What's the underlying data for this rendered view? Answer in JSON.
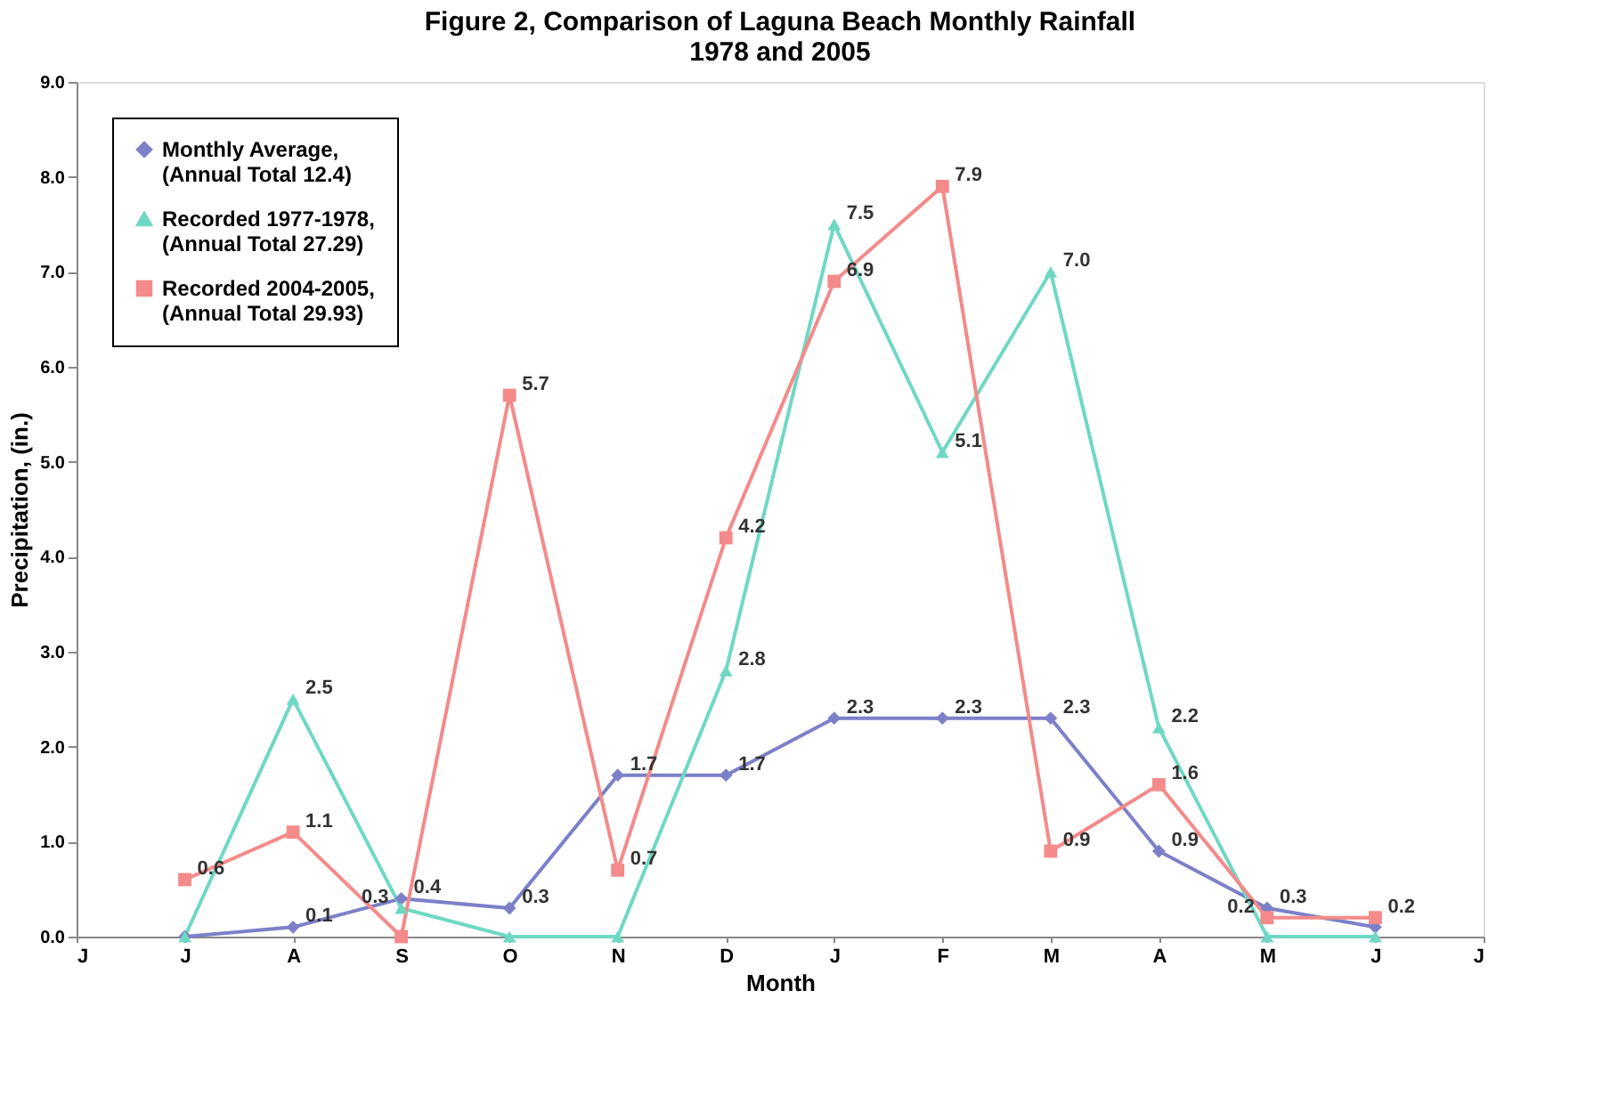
{
  "chart_data": {
    "type": "line",
    "title": "Figure 2, Comparison of Laguna Beach Monthly Rainfall\n1978 and 2005",
    "xlabel": "Month",
    "ylabel": "Precipitation, (in.)",
    "categories": [
      "J",
      "J",
      "A",
      "S",
      "O",
      "N",
      "D",
      "J",
      "F",
      "M",
      "A",
      "M",
      "J",
      "J"
    ],
    "series": [
      {
        "name": "Monthly Average,\n(Annual Total 12.4)",
        "color": "#7b80c8",
        "marker": "diamond",
        "values": [
          null,
          0.0,
          0.1,
          0.4,
          0.3,
          1.7,
          1.7,
          2.3,
          2.3,
          2.3,
          0.9,
          0.3,
          0.1,
          null
        ],
        "value_labels": [
          null,
          null,
          "0.1",
          "0.4",
          "0.3",
          "1.7",
          "1.7",
          "2.3",
          "2.3",
          "2.3",
          "0.9",
          "0.3",
          null,
          null
        ]
      },
      {
        "name": "Recorded 1977-1978,\n(Annual Total 27.29)",
        "color": "#6fd8c4",
        "marker": "triangle",
        "values": [
          null,
          0.0,
          2.5,
          0.3,
          0.0,
          0.0,
          2.8,
          7.5,
          5.1,
          7.0,
          2.2,
          0.0,
          0.0,
          null
        ],
        "value_labels": [
          null,
          null,
          "2.5",
          "0.3",
          null,
          null,
          "2.8",
          "7.5",
          "5.1",
          "7.0",
          "2.2",
          null,
          null,
          null
        ]
      },
      {
        "name": "Recorded 2004-2005,\n(Annual Total 29.93)",
        "color": "#f48a8a",
        "marker": "square",
        "values": [
          null,
          0.6,
          1.1,
          0.0,
          5.7,
          0.7,
          4.2,
          6.9,
          7.9,
          0.9,
          1.6,
          0.2,
          0.2,
          null
        ],
        "value_labels": [
          null,
          "0.6",
          "1.1",
          null,
          "5.7",
          "0.7",
          "4.2",
          "6.9",
          "7.9",
          "0.9",
          "1.6",
          "0.2",
          "0.2",
          null
        ]
      }
    ],
    "ylim": [
      0,
      9
    ],
    "yticks": [
      {
        "value": 0,
        "label": "0.0"
      },
      {
        "value": 1,
        "label": "1.0"
      },
      {
        "value": 2,
        "label": "2.0"
      },
      {
        "value": 3,
        "label": "3.0"
      },
      {
        "value": 4,
        "label": "4.0"
      },
      {
        "value": 5,
        "label": "5.0"
      },
      {
        "value": 6,
        "label": "6.0"
      },
      {
        "value": 7,
        "label": "7.0"
      },
      {
        "value": 8,
        "label": "8.0"
      },
      {
        "value": 9,
        "label": "9.0"
      }
    ],
    "grid": false,
    "legend": "top left"
  }
}
